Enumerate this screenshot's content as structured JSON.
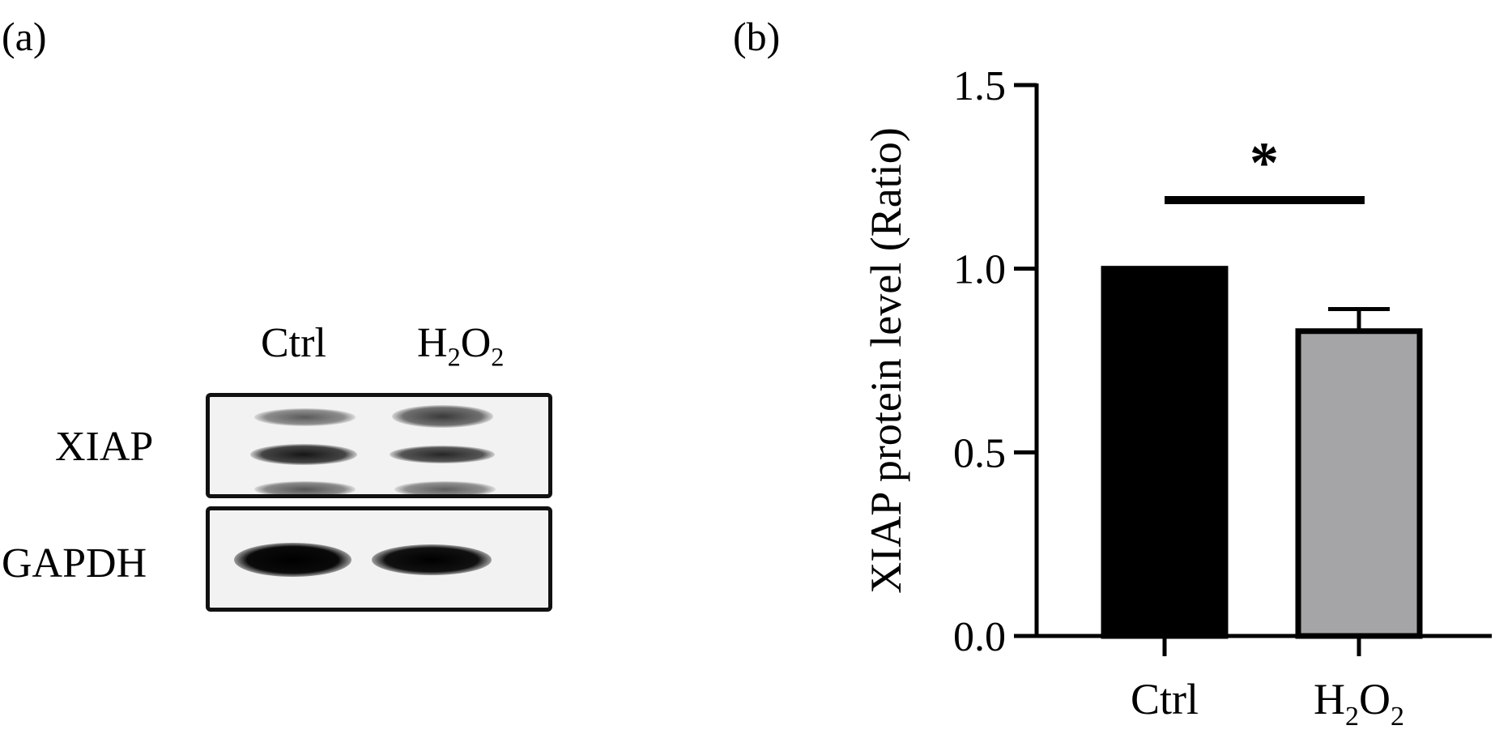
{
  "panels": {
    "a_label": "(a)",
    "b_label": "(b)"
  },
  "blot": {
    "lanes": [
      {
        "main": "Ctrl",
        "parts": []
      },
      {
        "main": "H",
        "parts": [
          {
            "sub": "2"
          },
          {
            "text": "O"
          },
          {
            "sub": "2"
          }
        ]
      }
    ],
    "rows": [
      "XIAP",
      "GAPDH"
    ]
  },
  "chart_data": {
    "type": "bar",
    "categories": [
      "Ctrl",
      "H2O2"
    ],
    "category_display": [
      {
        "main": "Ctrl",
        "sub1": "",
        "mid": "",
        "sub2": ""
      },
      {
        "main": "H",
        "sub1": "2",
        "mid": "O",
        "sub2": "2"
      }
    ],
    "values": [
      1.0,
      0.83
    ],
    "errors": [
      0,
      0.06
    ],
    "bar_colors": [
      "#000000",
      "#a5a5a8"
    ],
    "ylabel": "XIAP protein level (Ratio)",
    "ylim": [
      0,
      1.5
    ],
    "yticks": [
      "0.0",
      "0.5",
      "1.0",
      "1.5"
    ],
    "significance": {
      "between": [
        0,
        1
      ],
      "mark": "*"
    }
  }
}
